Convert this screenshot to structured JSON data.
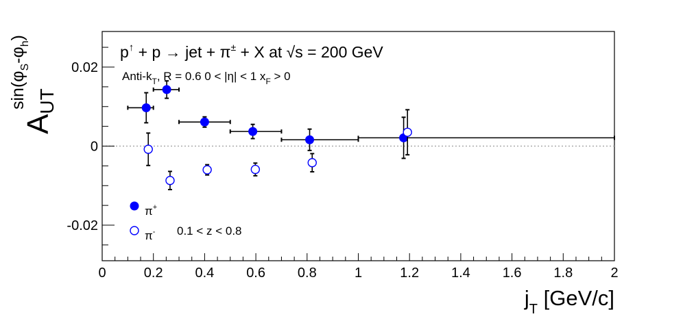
{
  "chart_data": {
    "type": "scatter",
    "title": "p↑ + p → jet + π± + X at  √s = 200 GeV",
    "subtitle": "Anti-k_T, R = 0.6   0 < |η| < 1   x_F > 0",
    "xlabel": "j_T [GeV/c]",
    "ylabel": "A_UT^sin(φ_S-φ_h)",
    "xlim": [
      0,
      2
    ],
    "ylim": [
      -0.029,
      0.029
    ],
    "x_ticks": [
      "0",
      "0.2",
      "0.4",
      "0.6",
      "0.8",
      "1",
      "1.2",
      "1.4",
      "1.6",
      "1.8",
      "2"
    ],
    "x_tick_values": [
      0,
      0.2,
      0.4,
      0.6,
      0.8,
      1.0,
      1.2,
      1.4,
      1.6,
      1.8,
      2.0
    ],
    "y_ticks": [
      "-0.02",
      "0",
      "0.02"
    ],
    "y_tick_values": [
      -0.02,
      0,
      0.02
    ],
    "zero_line": true,
    "legend_position": "bottom-left",
    "annotation": "0.1 < z < 0.8",
    "series": [
      {
        "name": "π⁺",
        "marker": "filled-circle",
        "color": "#0000ff",
        "points": [
          {
            "x": 0.172,
            "y": 0.0097,
            "xerr": [
              0.1,
              0.2
            ],
            "yerr": 0.0038
          },
          {
            "x": 0.252,
            "y": 0.0143,
            "xerr": [
              0.2,
              0.3
            ],
            "yerr": 0.0022
          },
          {
            "x": 0.4,
            "y": 0.0061,
            "xerr": [
              0.3,
              0.5
            ],
            "yerr": 0.0013
          },
          {
            "x": 0.588,
            "y": 0.0037,
            "xerr": [
              0.5,
              0.7
            ],
            "yerr": 0.0018
          },
          {
            "x": 0.81,
            "y": 0.0016,
            "xerr": [
              0.7,
              1.0
            ],
            "yerr": 0.0027
          },
          {
            "x": 1.177,
            "y": 0.0021,
            "xerr": [
              1.0,
              2.0
            ],
            "yerr": 0.0052
          }
        ]
      },
      {
        "name": "π⁻",
        "marker": "open-circle",
        "color": "#0000ff",
        "points": [
          {
            "x": 0.18,
            "y": -0.0008,
            "yerr": 0.0041
          },
          {
            "x": 0.265,
            "y": -0.0087,
            "yerr": 0.0023
          },
          {
            "x": 0.41,
            "y": -0.006,
            "yerr": 0.0013
          },
          {
            "x": 0.598,
            "y": -0.0059,
            "yerr": 0.0016
          },
          {
            "x": 0.82,
            "y": -0.0042,
            "yerr": 0.0023
          },
          {
            "x": 1.192,
            "y": 0.0035,
            "yerr": 0.0057
          }
        ]
      }
    ]
  }
}
